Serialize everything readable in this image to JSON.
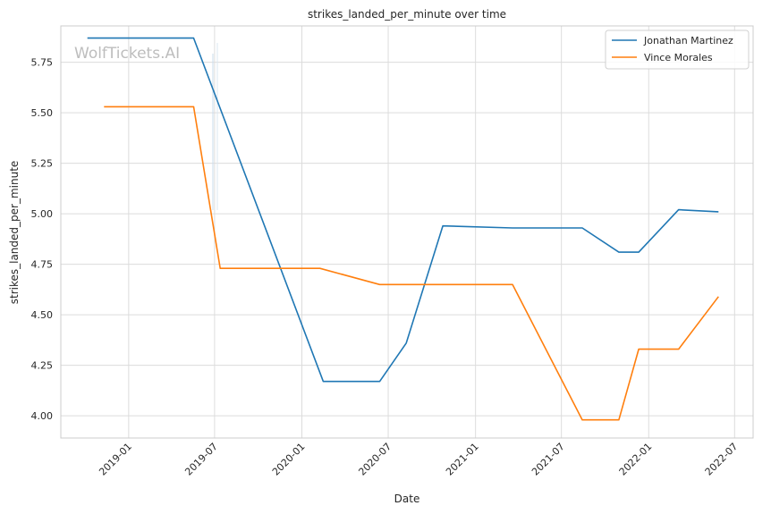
{
  "chart_data": {
    "type": "line",
    "title": "strikes_landed_per_minute over time",
    "xlabel": "Date",
    "ylabel": "strikes_landed_per_minute",
    "watermark": "WolfTickets.AI",
    "x_ticks": [
      "2019-01",
      "2019-07",
      "2020-01",
      "2020-07",
      "2021-01",
      "2021-07",
      "2022-01",
      "2022-07"
    ],
    "xlim": [
      "2018-08-11",
      "2022-08-09"
    ],
    "ylim": [
      3.89,
      5.93
    ],
    "y_ticks": [
      4.0,
      4.25,
      4.5,
      4.75,
      5.0,
      5.25,
      5.5,
      5.75
    ],
    "grid": true,
    "legend_position": "top-right",
    "series": [
      {
        "name": "Jonathan Martinez",
        "color": "#1f77b4",
        "points": [
          [
            "2018-10-06",
            5.87
          ],
          [
            "2019-05-18",
            5.87
          ],
          [
            "2020-02-15",
            4.17
          ],
          [
            "2020-06-13",
            4.17
          ],
          [
            "2020-08-08",
            4.36
          ],
          [
            "2020-10-24",
            4.94
          ],
          [
            "2021-03-20",
            4.93
          ],
          [
            "2021-08-14",
            4.93
          ],
          [
            "2021-10-30",
            4.81
          ],
          [
            "2021-12-11",
            4.81
          ],
          [
            "2022-03-05",
            5.02
          ],
          [
            "2022-05-28",
            5.01
          ]
        ]
      },
      {
        "name": "Vince Morales",
        "color": "#ff7f0e",
        "points": [
          [
            "2018-11-10",
            5.53
          ],
          [
            "2019-05-18",
            5.53
          ],
          [
            "2019-07-13",
            4.73
          ],
          [
            "2020-02-08",
            4.73
          ],
          [
            "2020-06-13",
            4.65
          ],
          [
            "2021-03-20",
            4.65
          ],
          [
            "2021-08-14",
            3.98
          ],
          [
            "2021-10-30",
            3.98
          ],
          [
            "2021-12-11",
            4.33
          ],
          [
            "2022-03-05",
            4.33
          ],
          [
            "2022-05-28",
            4.59
          ]
        ]
      }
    ]
  }
}
